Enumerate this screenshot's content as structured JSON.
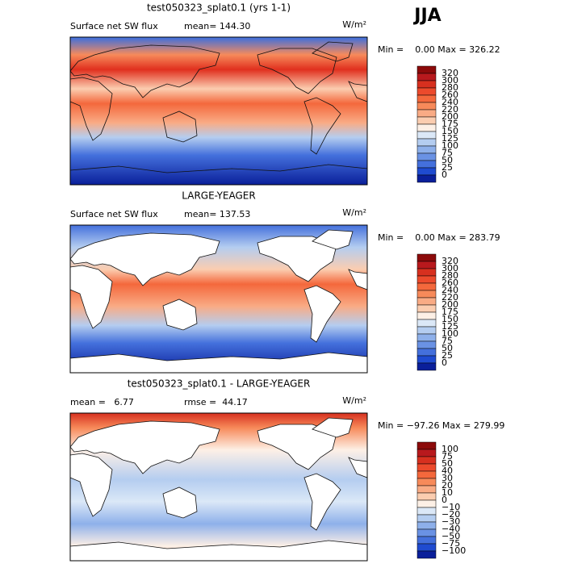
{
  "header": {
    "season": "JJA"
  },
  "panels": [
    {
      "title": "test050323_splat0.1 (yrs 1-1)",
      "field": "Surface net SW flux",
      "stat": "mean= 144.30",
      "units": "W/m²",
      "range": "Min =    0.00 Max = 326.22",
      "colorbar": {
        "labels": [
          "320",
          "300",
          "280",
          "260",
          "240",
          "220",
          "200",
          "175",
          "150",
          "125",
          "100",
          "75",
          "50",
          "25",
          "0"
        ],
        "colors": [
          "#8c0a0a",
          "#b8191d",
          "#d7301f",
          "#ec4a2c",
          "#f4683c",
          "#f78a5a",
          "#f9ab85",
          "#fbcdb0",
          "#fdf0e6",
          "#dbe8f7",
          "#b4cdf0",
          "#8eb0ea",
          "#6a92e4",
          "#4470dc",
          "#1f4bd0",
          "#0a1f9a"
        ]
      }
    },
    {
      "title": "LARGE-YEAGER",
      "field": "Surface net SW flux",
      "stat": "mean= 137.53",
      "units": "W/m²",
      "range": "Min =    0.00 Max = 283.79",
      "colorbar": {
        "labels": [
          "320",
          "300",
          "280",
          "260",
          "240",
          "220",
          "200",
          "175",
          "150",
          "125",
          "100",
          "75",
          "50",
          "25",
          "0"
        ],
        "colors": [
          "#8c0a0a",
          "#b8191d",
          "#d7301f",
          "#ec4a2c",
          "#f4683c",
          "#f78a5a",
          "#f9ab85",
          "#fbcdb0",
          "#fdf0e6",
          "#dbe8f7",
          "#b4cdf0",
          "#8eb0ea",
          "#6a92e4",
          "#4470dc",
          "#1f4bd0",
          "#0a1f9a"
        ]
      }
    },
    {
      "title": "test050323_splat0.1 - LARGE-YEAGER",
      "field": "mean =   6.77",
      "stat": "rmse =  44.17",
      "units": "W/m²",
      "range": "Min = −97.26 Max = 279.99",
      "colorbar": {
        "labels": [
          "100",
          "75",
          "50",
          "40",
          "30",
          "20",
          "10",
          "0",
          "−10",
          "−20",
          "−30",
          "−40",
          "−50",
          "−75",
          "−100"
        ],
        "colors": [
          "#8c0a0a",
          "#b8191d",
          "#d7301f",
          "#ec4a2c",
          "#f4683c",
          "#f78a5a",
          "#f9ab85",
          "#fbcdb0",
          "#fdf0e6",
          "#dbe8f7",
          "#b4cdf0",
          "#8eb0ea",
          "#6a92e4",
          "#4470dc",
          "#1f4bd0",
          "#0a1f9a"
        ]
      }
    }
  ]
}
